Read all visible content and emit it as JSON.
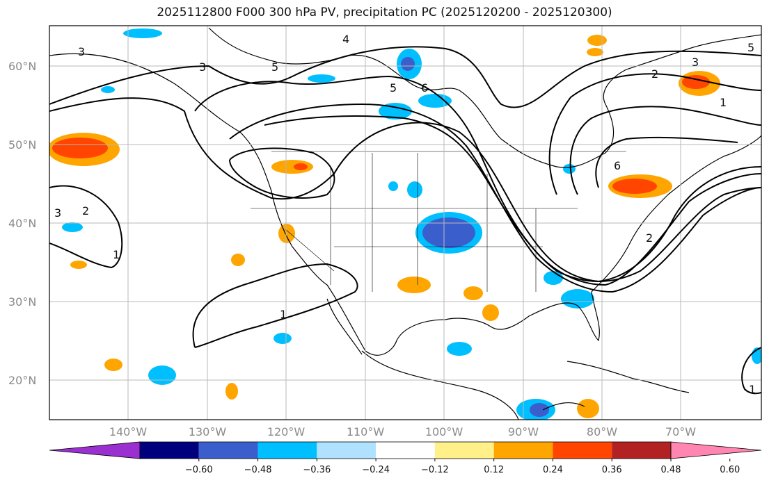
{
  "title": "2025112800 F000 300 hPa PV, precipitation PC (2025120200 - 2025120300)",
  "lat_labels": [
    "60°N",
    "50°N",
    "40°N",
    "30°N",
    "20°N"
  ],
  "lon_labels": [
    "140°W",
    "130°W",
    "120°W",
    "110°W",
    "100°W",
    "90°W",
    "80°W",
    "70°W"
  ],
  "colorbar": {
    "colors": [
      "#9b30d0",
      "#00007f",
      "#3a5fcd",
      "#00bfff",
      "#b0e2ff",
      "#ffffff",
      "#fff08a",
      "#ffa500",
      "#ff4500",
      "#b22222",
      "#ff86b0"
    ],
    "tick_labels": [
      "−0.60",
      "−0.48",
      "−0.36",
      "−0.24",
      "−0.12",
      "0.12",
      "0.24",
      "0.36",
      "0.48",
      "0.60"
    ]
  },
  "pv_contour_labels": [
    "1",
    "2",
    "3",
    "4",
    "5",
    "6"
  ]
}
